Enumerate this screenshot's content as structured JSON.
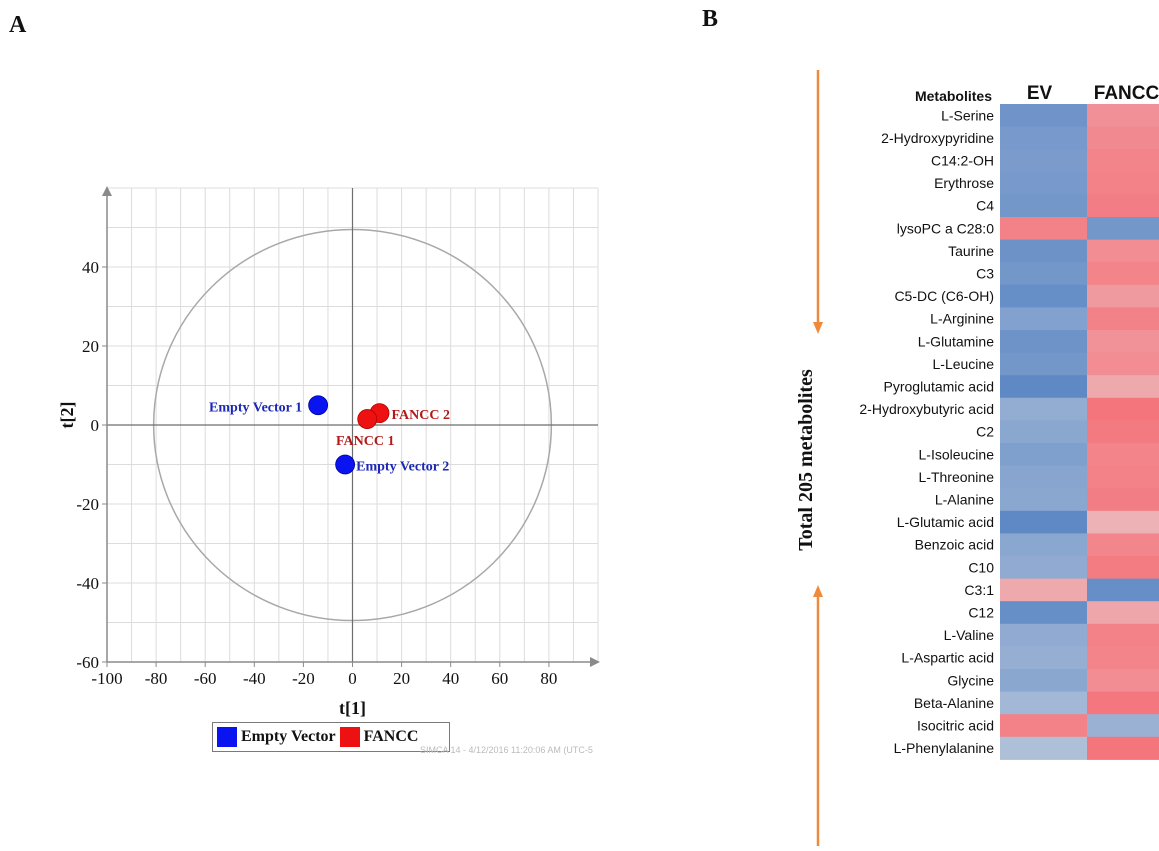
{
  "panels": {
    "a": "A",
    "b": "B"
  },
  "legend": {
    "items": [
      {
        "label": "Empty Vector",
        "color": "#0a14f0"
      },
      {
        "label": "FANCC",
        "color": "#ee1111"
      }
    ]
  },
  "watermark": "SIMCA 14 - 4/12/2016 11:20:06 AM (UTC-5",
  "chart_data": [
    {
      "type": "scatter",
      "title": "",
      "xlabel": "t[1]",
      "ylabel": "t[2]",
      "xlim": [
        -100,
        100
      ],
      "ylim": [
        -60,
        60
      ],
      "xticks": [
        -100,
        -80,
        -60,
        -40,
        -20,
        0,
        20,
        40,
        60,
        80
      ],
      "yticks": [
        -60,
        -40,
        -20,
        0,
        20,
        40
      ],
      "grid": true,
      "ellipse": {
        "cx": 0,
        "cy": 0,
        "rx": 81,
        "ry": 49.5
      },
      "legend_position": "bottom",
      "series": [
        {
          "name": "Empty Vector",
          "color": "#0a14f0",
          "points": [
            {
              "label": "Empty Vector 1",
              "x": -14,
              "y": 5
            },
            {
              "label": "Empty Vector 2",
              "x": -3,
              "y": -10
            }
          ]
        },
        {
          "name": "FANCC",
          "color": "#ee1111",
          "points": [
            {
              "label": "FANCC 2",
              "x": 11,
              "y": 3
            },
            {
              "label": "FANCC 1",
              "x": 6,
              "y": 1.5
            }
          ]
        }
      ]
    },
    {
      "type": "heatmap",
      "title": "",
      "row_header": "Metabolites",
      "columns": [
        "EV",
        "FANCC"
      ],
      "side_label": "Total 205 metabolites",
      "value_range": [
        -1,
        1
      ],
      "colors": {
        "low": "#5b86c4",
        "high": "#f56b73",
        "mid": "#e6e6e6"
      },
      "rows": [
        {
          "name": "L-Serine",
          "values": [
            -0.85,
            0.7
          ]
        },
        {
          "name": "2-Hydroxypyridine",
          "values": [
            -0.8,
            0.75
          ]
        },
        {
          "name": "C14:2-OH",
          "values": [
            -0.78,
            0.8
          ]
        },
        {
          "name": "Erythrose",
          "values": [
            -0.8,
            0.82
          ]
        },
        {
          "name": "C4",
          "values": [
            -0.82,
            0.85
          ]
        },
        {
          "name": "lysoPC a C28:0",
          "values": [
            0.82,
            -0.82
          ]
        },
        {
          "name": "Taurine",
          "values": [
            -0.88,
            0.72
          ]
        },
        {
          "name": "C3",
          "values": [
            -0.82,
            0.8
          ]
        },
        {
          "name": "C5-DC (C6-OH)",
          "values": [
            -0.92,
            0.62
          ]
        },
        {
          "name": "L-Arginine",
          "values": [
            -0.72,
            0.82
          ]
        },
        {
          "name": "L-Glutamine",
          "values": [
            -0.86,
            0.68
          ]
        },
        {
          "name": "L-Leucine",
          "values": [
            -0.82,
            0.72
          ]
        },
        {
          "name": "Pyroglutamic acid",
          "values": [
            -0.97,
            0.5
          ]
        },
        {
          "name": "2-Hydroxybutyric acid",
          "values": [
            -0.6,
            0.92
          ]
        },
        {
          "name": "C2",
          "values": [
            -0.66,
            0.88
          ]
        },
        {
          "name": "L-Isoleucine",
          "values": [
            -0.74,
            0.8
          ]
        },
        {
          "name": "L-Threonine",
          "values": [
            -0.68,
            0.82
          ]
        },
        {
          "name": "L-Alanine",
          "values": [
            -0.66,
            0.85
          ]
        },
        {
          "name": "L-Glutamic acid",
          "values": [
            -0.97,
            0.42
          ]
        },
        {
          "name": "Benzoic acid",
          "values": [
            -0.66,
            0.78
          ]
        },
        {
          "name": "C10",
          "values": [
            -0.62,
            0.86
          ]
        },
        {
          "name": "C3:1",
          "values": [
            0.5,
            -0.92
          ]
        },
        {
          "name": "C12",
          "values": [
            -0.92,
            0.52
          ]
        },
        {
          "name": "L-Valine",
          "values": [
            -0.62,
            0.82
          ]
        },
        {
          "name": "L-Aspartic acid",
          "values": [
            -0.58,
            0.8
          ]
        },
        {
          "name": "Glycine",
          "values": [
            -0.66,
            0.72
          ]
        },
        {
          "name": "Beta-Alanine",
          "values": [
            -0.48,
            0.9
          ]
        },
        {
          "name": "Isocitric acid",
          "values": [
            0.82,
            -0.55
          ]
        },
        {
          "name": "L-Phenylalanine",
          "values": [
            -0.4,
            0.92
          ]
        }
      ]
    }
  ]
}
